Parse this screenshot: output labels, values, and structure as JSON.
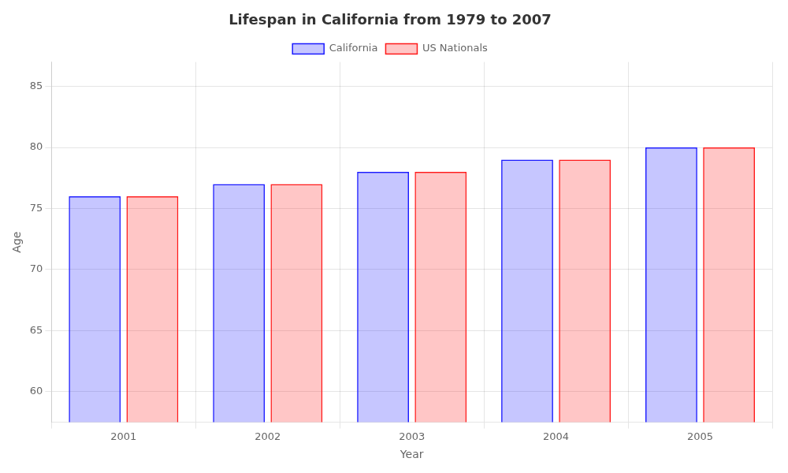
{
  "chart_data": {
    "type": "bar",
    "title": "Lifespan in California from 1979 to 2007",
    "xlabel": "Year",
    "ylabel": "Age",
    "categories": [
      "2001",
      "2002",
      "2003",
      "2004",
      "2005"
    ],
    "series": [
      {
        "name": "California",
        "color": "#1a1aff",
        "values": [
          76,
          77,
          78,
          79,
          80
        ]
      },
      {
        "name": "US Nationals",
        "color": "#ff1a1a",
        "values": [
          76,
          77,
          78,
          79,
          80
        ]
      }
    ],
    "ylim": [
      57.5,
      87
    ],
    "yticks": [
      60,
      65,
      70,
      75,
      80,
      85
    ],
    "grid": true,
    "legend": "top"
  }
}
